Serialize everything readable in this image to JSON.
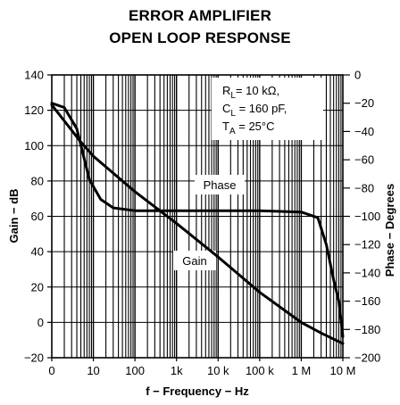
{
  "chart_data": {
    "type": "line",
    "title_line1": "ERROR AMPLIFIER",
    "title_line2": "OPEN LOOP RESPONSE",
    "xlabel": "f − Frequency − Hz",
    "ylabel_left": "Gain − dB",
    "ylabel_right": "Phase − Degrees",
    "x_scale": "log",
    "x_range_hz": [
      1,
      10000000
    ],
    "x_tick_labels": [
      "0",
      "10",
      "100",
      "1k",
      "10 k",
      "100 k",
      "1 M",
      "10 M"
    ],
    "y_left_range_db": [
      -20,
      140
    ],
    "y_left_ticks": [
      "−20",
      "0",
      "20",
      "40",
      "60",
      "80",
      "100",
      "120",
      "140"
    ],
    "y_right_range_deg": [
      -200,
      0
    ],
    "y_right_ticks": [
      "−200",
      "−180",
      "−160",
      "−140",
      "−120",
      "−100",
      "−80",
      "−60",
      "−40",
      "−20",
      "0"
    ],
    "grid": true,
    "annotations": {
      "box_lines": [
        {
          "main": "R",
          "sub": "L",
          "rest": "= 10 kΩ,"
        },
        {
          "main": "C",
          "sub": "L",
          "rest": " = 160 pF,"
        },
        {
          "main": "T",
          "sub": "A",
          "rest": " = 25°C"
        }
      ],
      "phase_label": "Phase",
      "gain_label": "Gain"
    },
    "series": [
      {
        "name": "Gain",
        "axis": "left",
        "unit": "dB",
        "x": [
          1,
          2,
          5,
          10,
          100,
          1000,
          10000,
          100000,
          1000000,
          3000000,
          10000000
        ],
        "y": [
          123,
          114,
          102,
          94,
          74,
          56,
          37,
          17,
          0,
          -6,
          -12
        ]
      },
      {
        "name": "Phase",
        "axis": "right",
        "unit": "degrees",
        "x": [
          1,
          2,
          4,
          8,
          15,
          30,
          100,
          1000,
          10000,
          100000,
          1000000,
          2500000,
          4000000,
          6000000,
          8000000,
          10000000
        ],
        "y": [
          -20,
          -23,
          -38,
          -74,
          -88,
          -94,
          -96,
          -96,
          -96,
          -96,
          -97,
          -101,
          -120,
          -145,
          -160,
          -185
        ]
      }
    ]
  }
}
